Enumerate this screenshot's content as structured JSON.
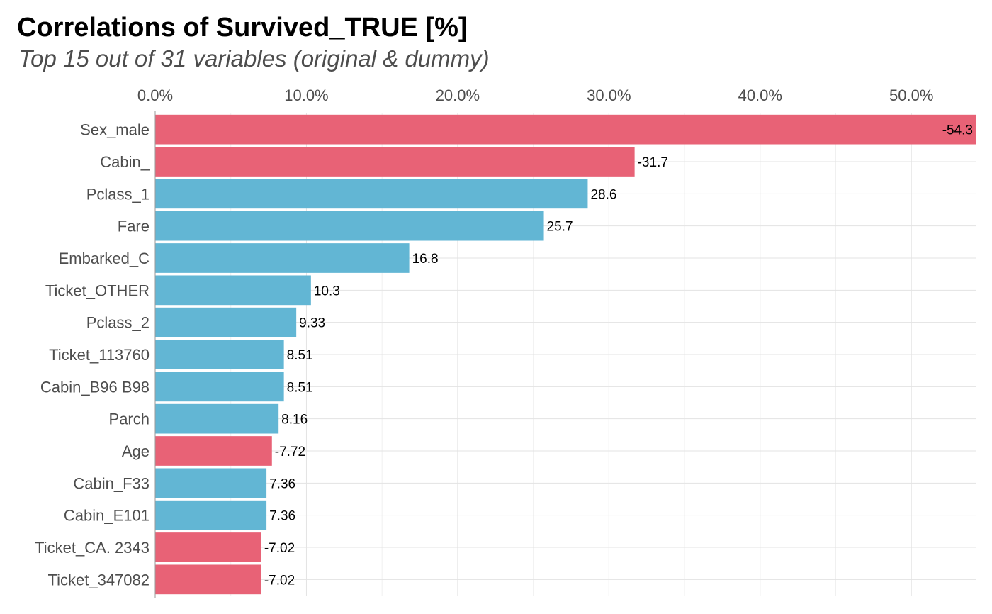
{
  "chart_data": {
    "type": "bar",
    "orientation": "horizontal",
    "title": "Correlations of Survived_TRUE [%]",
    "subtitle": "Top 15 out of 31 variables (original & dummy)",
    "xlabel": "",
    "ylabel": "",
    "xlim": [
      0,
      54.3
    ],
    "x_ticks": [
      "0.0%",
      "10.0%",
      "20.0%",
      "30.0%",
      "40.0%",
      "50.0%"
    ],
    "x_tick_values": [
      0,
      10,
      20,
      30,
      40,
      50
    ],
    "grid": true,
    "categories": [
      "Sex_male",
      "Cabin_",
      "Pclass_1",
      "Fare",
      "Embarked_C",
      "Ticket_OTHER",
      "Pclass_2",
      "Ticket_113760",
      "Cabin_B96 B98",
      "Parch",
      "Age",
      "Cabin_F33",
      "Cabin_E101",
      "Ticket_CA. 2343",
      "Ticket_347082"
    ],
    "values": [
      -54.3,
      -31.7,
      28.6,
      25.7,
      16.8,
      10.3,
      9.33,
      8.51,
      8.51,
      8.16,
      -7.72,
      7.36,
      7.36,
      -7.02,
      -7.02
    ],
    "value_labels": [
      "-54.3",
      "-31.7",
      "28.6",
      "25.7",
      "16.8",
      "10.3",
      "9.33",
      "8.51",
      "8.51",
      "8.16",
      "-7.72",
      "7.36",
      "7.36",
      "-7.02",
      "-7.02"
    ],
    "colors": {
      "positive": "#62B6D4",
      "negative": "#E86276"
    }
  }
}
